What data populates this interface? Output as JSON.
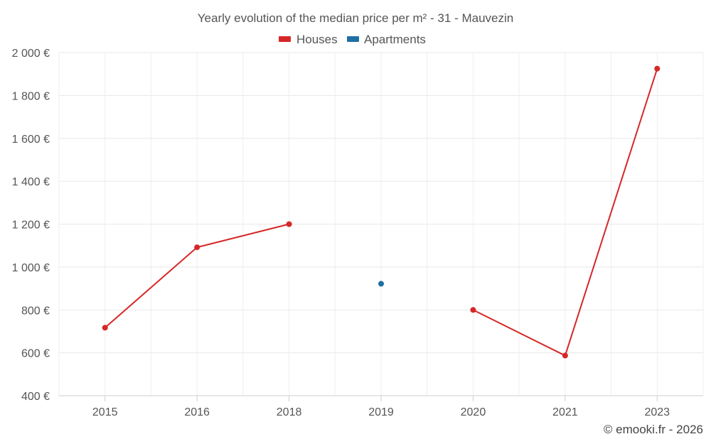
{
  "chart_data": {
    "type": "line",
    "title": "Yearly evolution of the median price per m² - 31 - Mauvezin",
    "categories": [
      "2015",
      "2016",
      "2018",
      "2019",
      "2020",
      "2021",
      "2023"
    ],
    "ylim": [
      400,
      2000
    ],
    "yticks": [
      400,
      600,
      800,
      1000,
      1200,
      1400,
      1600,
      1800,
      2000
    ],
    "ytick_labels": [
      "400 €",
      "600 €",
      "800 €",
      "1 000 €",
      "1 200 €",
      "1 400 €",
      "1 600 €",
      "1 800 €",
      "2 000 €"
    ],
    "grid": true,
    "legend_position": "top-center",
    "series": [
      {
        "name": "Houses",
        "color": "#d62728",
        "values": [
          717,
          1092,
          1200,
          null,
          800,
          587,
          1925
        ]
      },
      {
        "name": "Apartments",
        "color": "#1f6fa3",
        "values": [
          null,
          null,
          null,
          922,
          null,
          null,
          null
        ]
      }
    ],
    "credit": "© emooki.fr - 2026"
  }
}
